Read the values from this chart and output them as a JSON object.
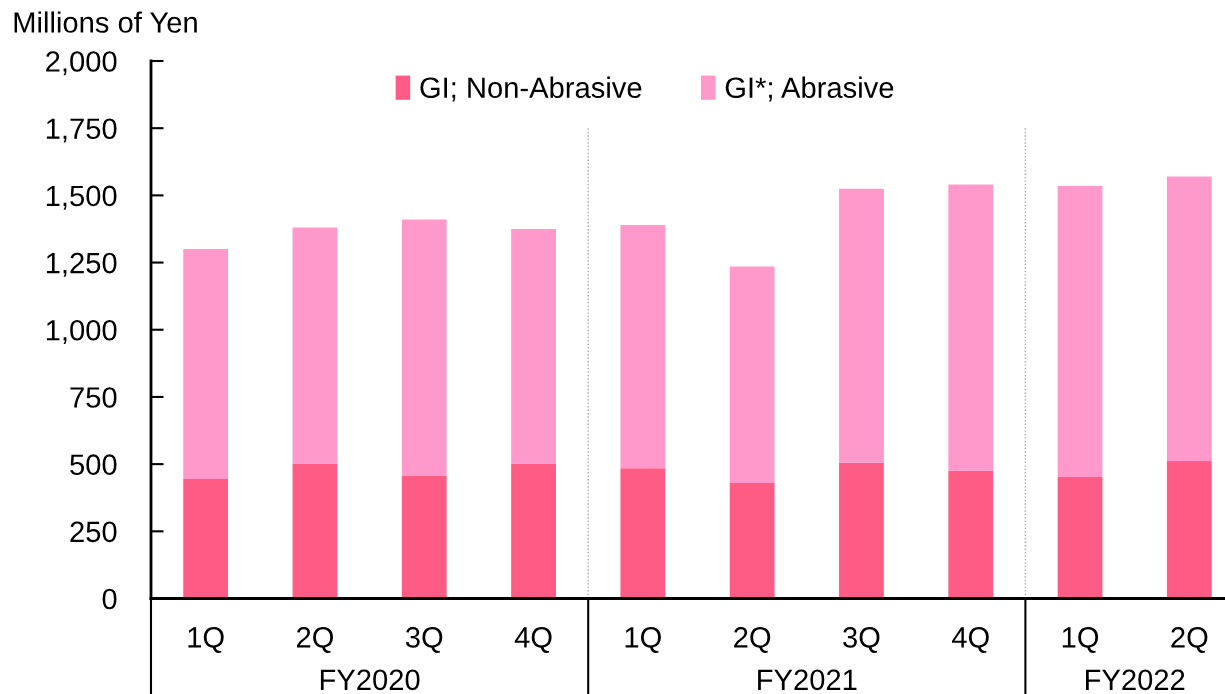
{
  "chart_data": {
    "type": "bar",
    "stacked": true,
    "ylabel": "Millions of Yen",
    "categories": [
      "1Q",
      "2Q",
      "3Q",
      "4Q",
      "1Q",
      "2Q",
      "3Q",
      "4Q",
      "1Q",
      "2Q"
    ],
    "series": [
      {
        "name": "GI; Non-Abrasive",
        "color": "#ff5c85",
        "values": [
          445,
          502,
          458,
          502,
          485,
          430,
          505,
          475,
          452,
          512
        ]
      },
      {
        "name": "GI*; Abrasive",
        "color": "#ff99cc",
        "values": [
          855,
          878,
          952,
          873,
          905,
          805,
          1020,
          1065,
          1083,
          1058
        ]
      }
    ],
    "ylim": [
      0,
      2000
    ],
    "yticks": [
      0,
      250,
      500,
      750,
      {
        "value": 1000,
        "label": "1,000"
      },
      {
        "value": 1250,
        "label": "1,250"
      },
      {
        "value": 1500,
        "label": "1,500"
      },
      {
        "value": 1750,
        "label": "1,750"
      },
      {
        "value": 2000,
        "label": "2,000"
      }
    ],
    "annotations": [
      "FY2020",
      "FY2021",
      "FY2022"
    ],
    "legend": "top"
  }
}
